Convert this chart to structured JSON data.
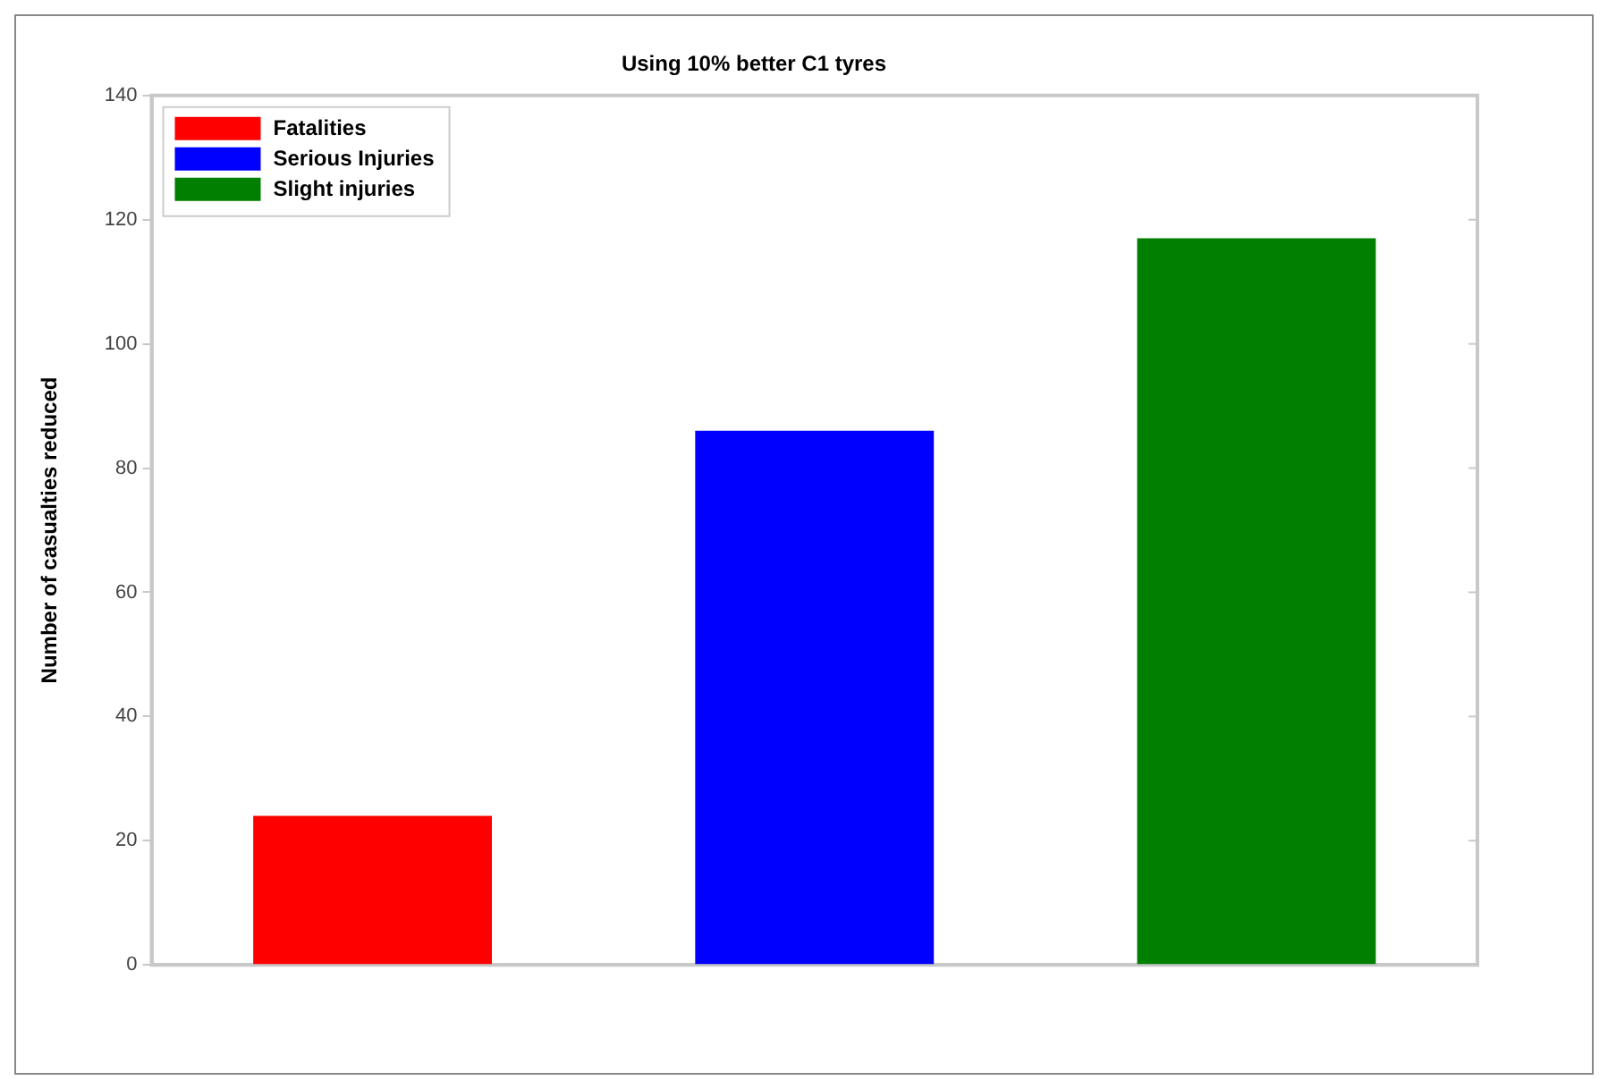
{
  "chart_data": {
    "type": "bar",
    "title": "Using 10% better C1 tyres",
    "ylabel": "Number of casualties reduced",
    "categories": [
      null,
      null,
      null
    ],
    "series": [
      {
        "name": "Fatalities",
        "color": "#ff0000",
        "values": [
          24,
          null,
          null
        ]
      },
      {
        "name": "Serious Injuries",
        "color": "#0000ff",
        "values": [
          null,
          86,
          null
        ]
      },
      {
        "name": "Slight injuries",
        "color": "#007f00",
        "values": [
          null,
          null,
          117
        ]
      }
    ],
    "ylim": [
      0,
      140
    ],
    "yticks": [
      0,
      20,
      40,
      60,
      80,
      100,
      120,
      140
    ],
    "grid": false,
    "legend": "top left"
  }
}
